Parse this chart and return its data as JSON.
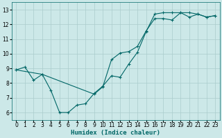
{
  "xlabel": "Humidex (Indice chaleur)",
  "ylabel": "",
  "bg_color": "#cce8e8",
  "line_color": "#006666",
  "grid_color": "#aacccc",
  "xlim": [
    -0.5,
    23.5
  ],
  "ylim": [
    5.5,
    13.5
  ],
  "xticks": [
    0,
    1,
    2,
    3,
    4,
    5,
    6,
    7,
    8,
    9,
    10,
    11,
    12,
    13,
    14,
    15,
    16,
    17,
    18,
    19,
    20,
    21,
    22,
    23
  ],
  "yticks": [
    6,
    7,
    8,
    9,
    10,
    11,
    12,
    13
  ],
  "line1_x": [
    0,
    1,
    2,
    3,
    4,
    5,
    6,
    7,
    8,
    9,
    10,
    11,
    12,
    13,
    14,
    15,
    16,
    17,
    18,
    19,
    20,
    21,
    22,
    23
  ],
  "line1_y": [
    8.9,
    9.1,
    8.2,
    8.6,
    7.5,
    6.0,
    6.0,
    6.5,
    6.6,
    7.3,
    7.8,
    8.5,
    8.4,
    9.3,
    10.1,
    11.5,
    12.7,
    12.8,
    12.8,
    12.8,
    12.5,
    12.7,
    12.5,
    12.6
  ],
  "line2_x": [
    0,
    3,
    9,
    10,
    11,
    12,
    13,
    14,
    15,
    16,
    17,
    18,
    19,
    20,
    21,
    22,
    23
  ],
  "line2_y": [
    8.9,
    8.6,
    7.25,
    7.75,
    9.6,
    10.05,
    10.15,
    10.5,
    11.55,
    12.4,
    12.4,
    12.3,
    12.8,
    12.8,
    12.7,
    12.5,
    12.6
  ],
  "tick_fontsize": 5.5,
  "xlabel_fontsize": 6.5
}
